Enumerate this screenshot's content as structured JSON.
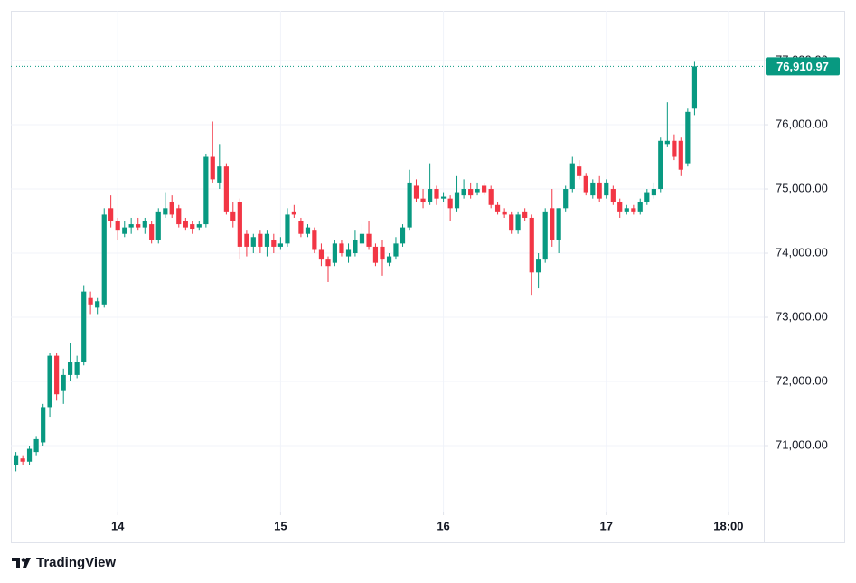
{
  "chart_data": {
    "type": "candlestick",
    "x": [
      13.375,
      13.417,
      13.458,
      13.5,
      13.542,
      13.583,
      13.625,
      13.667,
      13.708,
      13.75,
      13.792,
      13.833,
      13.875,
      13.917,
      13.958,
      14,
      14.042,
      14.083,
      14.125,
      14.167,
      14.208,
      14.25,
      14.292,
      14.333,
      14.375,
      14.417,
      14.458,
      14.5,
      14.542,
      14.583,
      14.625,
      14.667,
      14.708,
      14.75,
      14.792,
      14.833,
      14.875,
      14.917,
      14.958,
      15,
      15.042,
      15.083,
      15.125,
      15.167,
      15.208,
      15.25,
      15.292,
      15.333,
      15.375,
      15.417,
      15.458,
      15.5,
      15.542,
      15.583,
      15.625,
      15.667,
      15.708,
      15.75,
      15.792,
      15.833,
      15.875,
      15.917,
      15.958,
      16,
      16.042,
      16.083,
      16.125,
      16.167,
      16.208,
      16.25,
      16.292,
      16.333,
      16.375,
      16.417,
      16.458,
      16.5,
      16.542,
      16.583,
      16.625,
      16.667,
      16.708,
      16.75,
      16.792,
      16.833,
      16.875,
      16.917,
      16.958,
      17,
      17.042,
      17.083,
      17.125,
      17.167,
      17.208,
      17.25,
      17.292,
      17.333,
      17.375,
      17.417,
      17.458,
      17.5,
      17.542
    ],
    "open": [
      70700,
      70800,
      70750,
      70900,
      71050,
      71600,
      72400,
      71850,
      72100,
      72100,
      72300,
      73300,
      73150,
      73200,
      74700,
      74500,
      74300,
      74400,
      74450,
      74400,
      74450,
      74200,
      74600,
      74800,
      74700,
      74500,
      74450,
      74400,
      74450,
      75500,
      75100,
      75350,
      74650,
      74800,
      74300,
      74100,
      74300,
      74100,
      74200,
      74100,
      74150,
      74650,
      74500,
      74300,
      74350,
      74050,
      73900,
      73850,
      74150,
      73950,
      74000,
      74150,
      74300,
      74100,
      74100,
      73850,
      73950,
      74150,
      74400,
      75050,
      74850,
      74800,
      75000,
      74850,
      74850,
      74700,
      74900,
      75000,
      74950,
      75050,
      75000,
      74750,
      74650,
      74600,
      74350,
      74650,
      74550,
      73700,
      73900,
      74700,
      74200,
      74700,
      75000,
      75350,
      75200,
      74900,
      75100,
      74900,
      75000,
      74800,
      74650,
      74700,
      74650,
      74800,
      74900,
      75000,
      75700,
      75750,
      75750,
      75400,
      76250
    ],
    "high": [
      70900,
      70850,
      71000,
      71150,
      71650,
      72450,
      72450,
      72200,
      72600,
      72400,
      73500,
      73400,
      73300,
      74700,
      74900,
      74550,
      74500,
      74550,
      74550,
      74550,
      74500,
      74700,
      74950,
      74900,
      74750,
      74550,
      74500,
      74500,
      75550,
      76050,
      75700,
      75400,
      74800,
      74850,
      74350,
      74300,
      74350,
      74350,
      74300,
      74250,
      74700,
      74750,
      74550,
      74450,
      74400,
      74150,
      73950,
      74200,
      74200,
      74150,
      74350,
      74450,
      74500,
      74150,
      74200,
      74000,
      74250,
      74450,
      75300,
      75150,
      75000,
      75400,
      75050,
      74950,
      74900,
      75200,
      75150,
      75100,
      75100,
      75100,
      75050,
      74800,
      74700,
      74650,
      74650,
      74700,
      74600,
      74000,
      74700,
      75000,
      74700,
      75050,
      75500,
      75450,
      75250,
      75150,
      75200,
      75150,
      75050,
      74850,
      74750,
      74750,
      74850,
      75000,
      75100,
      75800,
      76350,
      75850,
      75800,
      76250,
      76980
    ],
    "low": [
      70600,
      70700,
      70700,
      70850,
      71000,
      71450,
      71700,
      71650,
      72000,
      72050,
      72250,
      73050,
      73050,
      73150,
      74400,
      74200,
      74250,
      74300,
      74350,
      74300,
      74150,
      74150,
      74550,
      74550,
      74400,
      74350,
      74300,
      74350,
      74400,
      75100,
      75000,
      74600,
      74400,
      73900,
      73950,
      74000,
      74000,
      73950,
      74000,
      74050,
      74100,
      74550,
      74250,
      74250,
      74000,
      73800,
      73550,
      73800,
      73950,
      73850,
      73950,
      74100,
      74050,
      73800,
      73650,
      73800,
      73900,
      74100,
      74350,
      74800,
      74700,
      74750,
      74750,
      74800,
      74500,
      74650,
      74850,
      74850,
      74900,
      74900,
      74700,
      74600,
      74550,
      74300,
      74300,
      74500,
      73350,
      73450,
      73850,
      74100,
      74000,
      74650,
      74950,
      75150,
      74900,
      74850,
      74800,
      74850,
      74750,
      74550,
      74600,
      74600,
      74600,
      74750,
      74850,
      74950,
      75650,
      75450,
      75200,
      75350,
      76150
    ],
    "close": [
      70850,
      70750,
      70950,
      71100,
      71600,
      72400,
      71800,
      72100,
      72300,
      72300,
      73400,
      73200,
      73250,
      74600,
      74500,
      74350,
      74400,
      74450,
      74400,
      74500,
      74200,
      74650,
      74700,
      74600,
      74450,
      74400,
      74380,
      74450,
      75500,
      75150,
      75350,
      74650,
      74500,
      74100,
      74100,
      74250,
      74100,
      74300,
      74100,
      74150,
      74600,
      74600,
      74300,
      74400,
      74050,
      73900,
      73800,
      74150,
      74000,
      74050,
      74200,
      74300,
      74100,
      73850,
      73900,
      73950,
      74150,
      74400,
      75100,
      74850,
      74800,
      75000,
      74850,
      74880,
      74700,
      74950,
      75000,
      74900,
      75000,
      74950,
      74750,
      74650,
      74600,
      74350,
      74600,
      74550,
      73700,
      73900,
      74650,
      74200,
      74700,
      75000,
      75400,
      75200,
      74950,
      75100,
      74850,
      75100,
      74800,
      74650,
      74700,
      74650,
      74800,
      74950,
      75000,
      75750,
      75750,
      75500,
      75300,
      76200,
      76910.97
    ],
    "up_color": "#089981",
    "down_color": "#f23645",
    "price_label": {
      "value": 76910.97,
      "label": "76,910.97"
    },
    "xlim": [
      13.344,
      17.967
    ],
    "xticks": [
      14,
      15,
      16,
      17,
      {
        "value": 17.75,
        "label": "18:00"
      }
    ],
    "ylim": [
      69972,
      77775
    ],
    "yticks": [
      {
        "value": 71000,
        "label": "71,000.00"
      },
      {
        "value": 72000,
        "label": "72,000.00"
      },
      {
        "value": 73000,
        "label": "73,000.00"
      },
      {
        "value": 74000,
        "label": "74,000.00"
      },
      {
        "value": 75000,
        "label": "75,000.00"
      },
      {
        "value": 76000,
        "label": "76,000.00"
      },
      {
        "value": 77000,
        "label": "77,000.00"
      }
    ],
    "grid": true,
    "brand": "TradingView"
  }
}
